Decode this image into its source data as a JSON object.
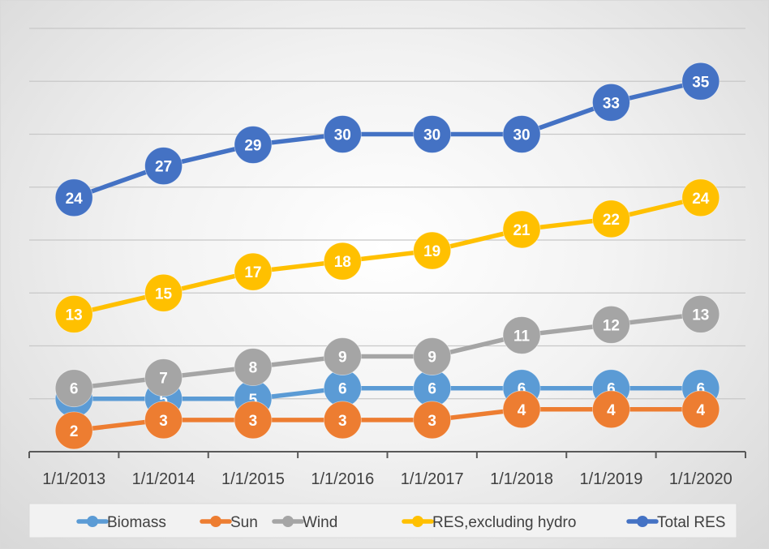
{
  "chart_data": {
    "type": "line",
    "categories": [
      "1/1/2013",
      "1/1/2014",
      "1/1/2015",
      "1/1/2016",
      "1/1/2017",
      "1/1/2018",
      "1/1/2019",
      "1/1/2020"
    ],
    "series": [
      {
        "name": "Biomass",
        "color": "#5b9bd5",
        "values": [
          5,
          5,
          5,
          6,
          6,
          6,
          6,
          6
        ]
      },
      {
        "name": "Sun",
        "color": "#ed7d31",
        "values": [
          2,
          3,
          3,
          3,
          3,
          4,
          4,
          4
        ]
      },
      {
        "name": "Wind",
        "color": "#a5a5a5",
        "values": [
          6,
          7,
          8,
          9,
          9,
          11,
          12,
          13
        ]
      },
      {
        "name": "RES,excluding hydro",
        "color": "#ffc000",
        "values": [
          13,
          15,
          17,
          18,
          19,
          21,
          22,
          24
        ]
      },
      {
        "name": "Total RES",
        "color": "#4472c4",
        "values": [
          24,
          27,
          29,
          30,
          30,
          30,
          33,
          35
        ]
      }
    ],
    "title": "",
    "xlabel": "",
    "ylabel": "",
    "ylim": [
      0,
      40
    ],
    "y_gridline_step": 5,
    "grid": true,
    "data_labels": true,
    "legend_position": "bottom"
  }
}
